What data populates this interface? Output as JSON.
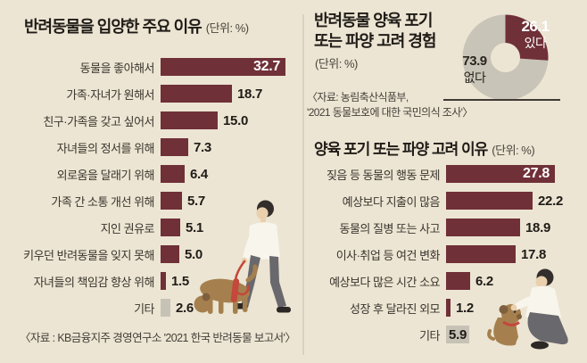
{
  "palette": {
    "bg": "#ece5d3",
    "accent": "#703038",
    "gray": "#c6c2b5",
    "donut_gray": "#c8c4b7",
    "text_dark": "#1f1b17",
    "text_label": "#3a352e",
    "white": "#ffffff",
    "divider": "#d9d2c0",
    "rule": "#3f3a34",
    "illus_skin": "#ead0ad",
    "illus_hair": "#332e2b",
    "illus_shirt": "#f8f5ec",
    "illus_pants": "#69686d",
    "illus_dog": "#a5804e",
    "illus_dog_dark": "#7e5f3e",
    "illus_red": "#c4483c"
  },
  "left_chart": {
    "title": "반려동물을 입양한 주요 이유",
    "unit": "(단위: %)",
    "source": "〈자료 : KB금융지주 경영연구소 '2021 한국 반려동물 보고서'〉"
  },
  "experience_chart": {
    "title_line1": "반려동물 양육 포기",
    "title_line2": "또는 파양 고려 경험",
    "unit": "(단위: %)",
    "yes_value": "26.1",
    "yes_label": "있다",
    "no_value": "73.9",
    "no_label": "없다",
    "source_line1": "〈자료: 농림축산식품부,",
    "source_line2": "'2021 동물보호에 대한 국민의식 조사'〉"
  },
  "right_chart": {
    "title": "양육 포기 또는 파양 고려 이유",
    "unit": "(단위: %)"
  },
  "chart_data": [
    {
      "type": "bar",
      "orientation": "horizontal",
      "title": "반려동물을 입양한 주요 이유",
      "unit": "%",
      "categories": [
        "동물을 좋아해서",
        "가족·자녀가 원해서",
        "친구·가족을 갖고 싶어서",
        "자녀들의 정서를 위해",
        "외로움을 달래기 위해",
        "가족 간 소통 개선 위해",
        "지인 권유로",
        "키우던 반려동물을 잊지 못해",
        "자녀들의 책임감 향상 위해",
        "기타"
      ],
      "values": [
        32.7,
        18.7,
        15.0,
        7.3,
        6.4,
        5.7,
        5.1,
        5.0,
        1.5,
        2.6
      ],
      "xlim": [
        0,
        35
      ],
      "gray_indices": [
        9
      ],
      "value_label_inside": [
        0
      ],
      "legend": "none",
      "grid": false
    },
    {
      "type": "pie",
      "title": "반려동물 양육 포기 또는 파양 고려 경험",
      "unit": "%",
      "labels": [
        "있다",
        "없다"
      ],
      "values": [
        26.1,
        73.9
      ],
      "donut": true,
      "start_angle_deg": 0,
      "clockwise": true
    },
    {
      "type": "bar",
      "orientation": "horizontal",
      "title": "양육 포기 또는 파양 고려 이유",
      "unit": "%",
      "categories": [
        "짖음 등 동물의 행동 문제",
        "예상보다 지출이 많음",
        "동물의 질병 또는 사고",
        "이사·취업 등 여건 변화",
        "예상보다 많은 시간 소요",
        "성장 후 달라진 외모",
        "기타"
      ],
      "values": [
        27.8,
        22.2,
        18.9,
        17.8,
        6.2,
        1.2,
        5.9
      ],
      "xlim": [
        0,
        30
      ],
      "gray_indices": [
        6
      ],
      "value_label_inside": [
        0,
        6
      ],
      "legend": "none",
      "grid": false
    }
  ],
  "illustrations": [
    {
      "name": "person-walking-dog"
    },
    {
      "name": "person-petting-puppy"
    }
  ]
}
